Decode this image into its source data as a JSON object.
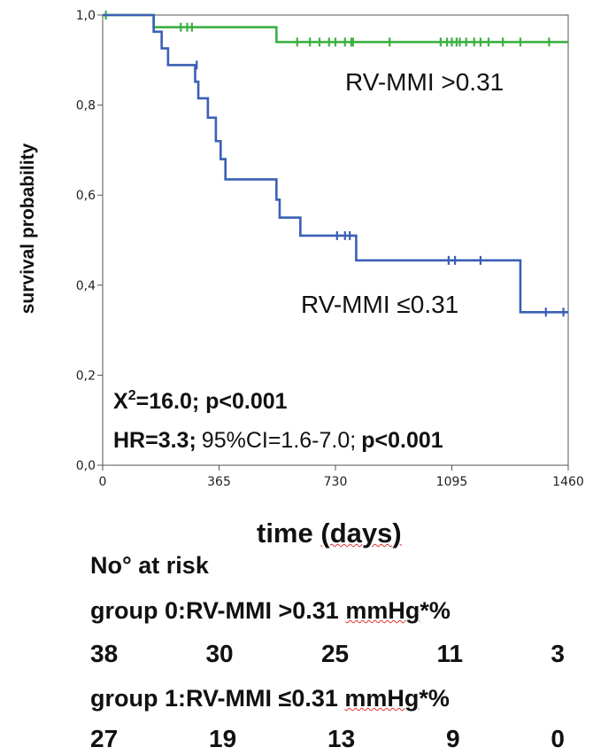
{
  "chart_data": {
    "type": "line",
    "chart_subtype": "kaplan-meier",
    "xlabel": "time",
    "xlabel_unit": "(days)",
    "ylabel": "survival probability",
    "xlim": [
      0,
      1460
    ],
    "ylim": [
      0,
      1.0
    ],
    "x_ticks": [
      "0",
      "365",
      "730",
      "1095",
      "1460"
    ],
    "x_tick_values": [
      0,
      365,
      730,
      1095,
      1460
    ],
    "y_ticks": [
      "0,0",
      "0,2",
      "0,4",
      "0,6",
      "0,8",
      "1,0"
    ],
    "y_tick_values": [
      0,
      0.2,
      0.4,
      0.6,
      0.8,
      1.0
    ],
    "grid": false,
    "series": [
      {
        "name": "RV-MMI >0.31",
        "color": "#3cb043",
        "steps": [
          [
            0,
            1.0
          ],
          [
            160,
            0.973
          ],
          [
            545,
            0.94
          ],
          [
            1460,
            0.94
          ]
        ],
        "censored": [
          [
            10,
            1.0
          ],
          [
            245,
            0.973
          ],
          [
            265,
            0.973
          ],
          [
            280,
            0.973
          ],
          [
            610,
            0.94
          ],
          [
            650,
            0.94
          ],
          [
            680,
            0.94
          ],
          [
            710,
            0.94
          ],
          [
            730,
            0.94
          ],
          [
            760,
            0.94
          ],
          [
            780,
            0.94
          ],
          [
            785,
            0.94
          ],
          [
            900,
            0.94
          ],
          [
            1060,
            0.94
          ],
          [
            1080,
            0.94
          ],
          [
            1095,
            0.94
          ],
          [
            1110,
            0.94
          ],
          [
            1120,
            0.94
          ],
          [
            1140,
            0.94
          ],
          [
            1165,
            0.94
          ],
          [
            1185,
            0.94
          ],
          [
            1210,
            0.94
          ],
          [
            1255,
            0.94
          ],
          [
            1310,
            0.94
          ],
          [
            1400,
            0.94
          ]
        ]
      },
      {
        "name": "RV-MMI ≤0.31",
        "color": "#3a5fb5",
        "steps": [
          [
            0,
            1.0
          ],
          [
            160,
            0.963
          ],
          [
            185,
            0.926
          ],
          [
            205,
            0.889
          ],
          [
            290,
            0.852
          ],
          [
            300,
            0.815
          ],
          [
            330,
            0.772
          ],
          [
            355,
            0.72
          ],
          [
            370,
            0.68
          ],
          [
            385,
            0.635
          ],
          [
            545,
            0.59
          ],
          [
            555,
            0.55
          ],
          [
            620,
            0.51
          ],
          [
            795,
            0.455
          ],
          [
            1310,
            0.34
          ],
          [
            1460,
            0.34
          ]
        ],
        "censored": [
          [
            295,
            0.889
          ],
          [
            735,
            0.51
          ],
          [
            760,
            0.51
          ],
          [
            775,
            0.51
          ],
          [
            1085,
            0.455
          ],
          [
            1105,
            0.455
          ],
          [
            1185,
            0.455
          ],
          [
            1390,
            0.34
          ],
          [
            1445,
            0.34
          ]
        ]
      }
    ],
    "annotations": {
      "label_high": "RV-MMI >0.31",
      "label_low": "RV-MMI ≤0.31",
      "chi_prefix": "X",
      "chi_sup": "2",
      "chi_rest": "=16.0; p<0.001",
      "hr_a": "HR=3.3;",
      "hr_b": "95%CI=1.6-7.0;",
      "hr_c": "p<0.001"
    }
  },
  "risk_table": {
    "title": "No° at risk",
    "group0_prefix": "group 0:",
    "group0_name": "RV-MMI >0.31",
    "group0_unit": "mmHg",
    "group0_suffix": "*%",
    "group0_counts": [
      "38",
      "30",
      "25",
      "11",
      "3"
    ],
    "group1_prefix": "group 1:",
    "group1_name": "RV-MMI ≤0.31",
    "group1_unit": "mmHg",
    "group1_suffix": "*%",
    "group1_counts": [
      "27",
      "19",
      "13",
      "9",
      "0"
    ]
  }
}
